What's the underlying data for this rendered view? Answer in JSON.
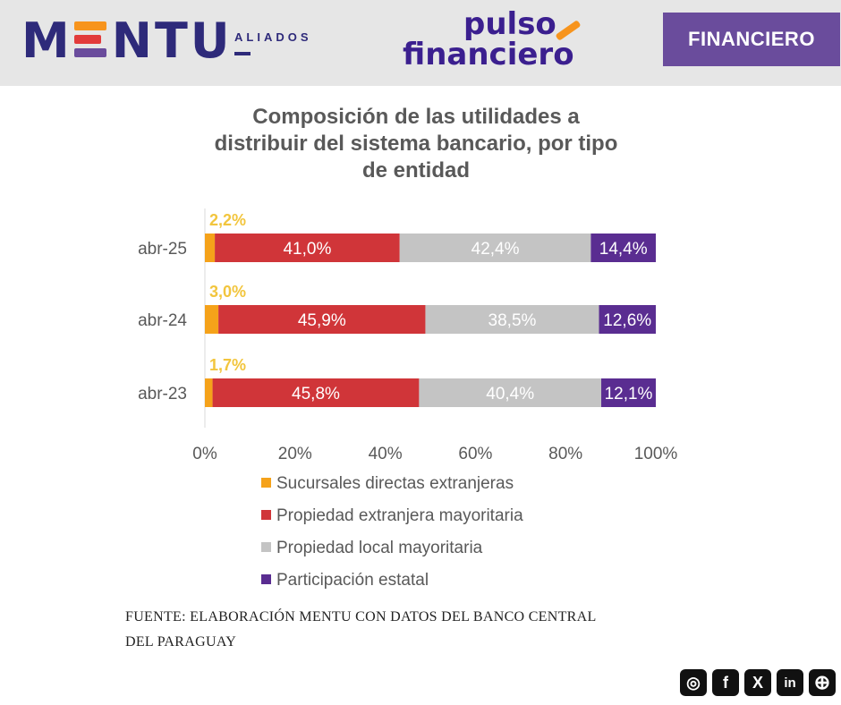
{
  "brand": {
    "mentu_left": "M",
    "mentu_right": "NTU",
    "aliados": "ALIADOS",
    "pulso_line1": "pulso",
    "pulso_line2": "financiero",
    "section_badge": "FINANCIERO"
  },
  "colors": {
    "orange": "#f5a21a",
    "red": "#d03539",
    "gray": "#c4c4c4",
    "purple": "#5a2d91",
    "orange_label": "#f2c53d"
  },
  "chart_data": {
    "type": "bar",
    "orientation": "horizontal",
    "stacked": true,
    "title": "Composición de las utilidades a distribuir del sistema bancario, por tipo de entidad",
    "title_lines": [
      "Composición de las utilidades a",
      "distribuir del sistema bancario, por tipo",
      "de entidad"
    ],
    "categories": [
      "abr-25",
      "abr-24",
      "abr-23"
    ],
    "series": [
      {
        "name": "Sucursales directas extranjeras",
        "values": [
          2.2,
          3.0,
          1.7
        ],
        "labels": [
          "2,2%",
          "3,0%",
          "1,7%"
        ],
        "color": "#f5a21a"
      },
      {
        "name": "Propiedad extranjera mayoritaria",
        "values": [
          41.0,
          45.9,
          45.8
        ],
        "labels": [
          "41,0%",
          "45,9%",
          "45,8%"
        ],
        "color": "#d03539"
      },
      {
        "name": "Propiedad local mayoritaria",
        "values": [
          42.4,
          38.5,
          40.4
        ],
        "labels": [
          "42,4%",
          "38,5%",
          "40,4%"
        ],
        "color": "#c4c4c4"
      },
      {
        "name": "Participación estatal",
        "values": [
          14.4,
          12.6,
          12.1
        ],
        "labels": [
          "14,4%",
          "12,6%",
          "12,1%"
        ],
        "color": "#5a2d91"
      }
    ],
    "xlim": [
      0,
      100
    ],
    "x_ticks": [
      "0%",
      "20%",
      "40%",
      "60%",
      "80%",
      "100%"
    ],
    "legend_position": "bottom"
  },
  "source": {
    "line1": "FUENTE: ELABORACIÓN MENTU CON DATOS DEL BANCO CENTRAL",
    "line2": "DEL PARAGUAY"
  },
  "social": [
    {
      "name": "instagram-icon",
      "glyph": "◎"
    },
    {
      "name": "facebook-icon",
      "glyph": "f"
    },
    {
      "name": "x-icon",
      "glyph": "X"
    },
    {
      "name": "linkedin-icon",
      "glyph": "in"
    },
    {
      "name": "web-icon",
      "glyph": "⊕"
    }
  ]
}
